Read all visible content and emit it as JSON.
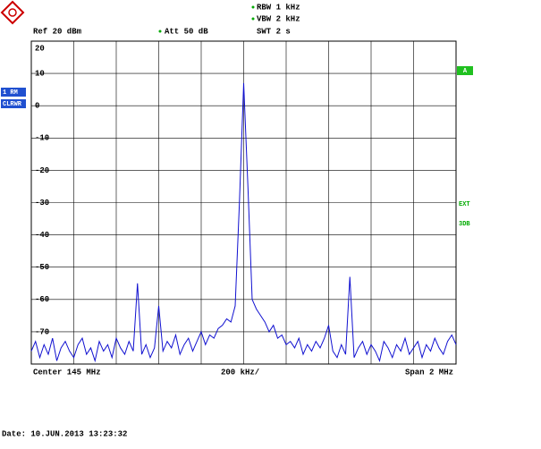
{
  "chart_data": {
    "type": "line",
    "header": {
      "rbw": "RBW 1 kHz",
      "vbw": "VBW 2 kHz",
      "swt": "SWT 2 s",
      "ref": "Ref 20 dBm",
      "att": "Att 50 dB"
    },
    "side_labels": {
      "trace": "1 RM",
      "mode": "CLRWR",
      "marker": "A",
      "ext": "EXT",
      "db": "3DB"
    },
    "footer": {
      "center": "Center 145 MHz",
      "div": "200 kHz/",
      "span": "Span 2 MHz",
      "date": "Date: 10.JUN.2013  13:23:32"
    },
    "xlim": [
      144,
      146
    ],
    "ylim": [
      -80,
      20
    ],
    "yticks": [
      20,
      10,
      0,
      -10,
      -20,
      -30,
      -40,
      -50,
      -60,
      -70
    ],
    "grid": true,
    "series": [
      {
        "color": "#1010d0",
        "x": [
          144,
          144.02,
          144.04,
          144.06,
          144.08,
          144.1,
          144.12,
          144.14,
          144.16,
          144.18,
          144.2,
          144.22,
          144.24,
          144.26,
          144.28,
          144.3,
          144.32,
          144.34,
          144.36,
          144.38,
          144.4,
          144.42,
          144.44,
          144.46,
          144.48,
          144.5,
          144.52,
          144.54,
          144.56,
          144.58,
          144.6,
          144.62,
          144.64,
          144.66,
          144.68,
          144.7,
          144.72,
          144.74,
          144.76,
          144.78,
          144.8,
          144.82,
          144.84,
          144.86,
          144.88,
          144.9,
          144.92,
          144.94,
          144.96,
          144.98,
          145,
          145.02,
          145.04,
          145.06,
          145.08,
          145.1,
          145.12,
          145.14,
          145.16,
          145.18,
          145.2,
          145.22,
          145.24,
          145.26,
          145.28,
          145.3,
          145.32,
          145.34,
          145.36,
          145.38,
          145.4,
          145.42,
          145.44,
          145.46,
          145.48,
          145.5,
          145.52,
          145.54,
          145.56,
          145.58,
          145.6,
          145.62,
          145.64,
          145.66,
          145.68,
          145.7,
          145.72,
          145.74,
          145.76,
          145.78,
          145.8,
          145.82,
          145.84,
          145.86,
          145.88,
          145.9,
          145.92,
          145.94,
          145.96,
          145.98,
          146
        ],
        "values": [
          -76,
          -73,
          -78,
          -74,
          -77,
          -72,
          -79,
          -75,
          -73,
          -76,
          -78,
          -74,
          -72,
          -77,
          -75,
          -79,
          -73,
          -76,
          -74,
          -78,
          -72,
          -75,
          -77,
          -73,
          -76,
          -55,
          -77,
          -74,
          -78,
          -75,
          -62,
          -76,
          -73,
          -75,
          -71,
          -77,
          -74,
          -72,
          -76,
          -73,
          -70,
          -74,
          -71,
          -72,
          -69,
          -68,
          -66,
          -67,
          -62,
          -30,
          7,
          -25,
          -60,
          -63,
          -65,
          -67,
          -70,
          -68,
          -72,
          -71,
          -74,
          -73,
          -75,
          -72,
          -77,
          -74,
          -76,
          -73,
          -75,
          -72,
          -68,
          -76,
          -78,
          -74,
          -77,
          -53,
          -78,
          -75,
          -73,
          -77,
          -74,
          -76,
          -79,
          -73,
          -75,
          -78,
          -74,
          -76,
          -72,
          -77,
          -75,
          -73,
          -78,
          -74,
          -76,
          -72,
          -75,
          -77,
          -73,
          -71,
          -74
        ]
      }
    ]
  }
}
